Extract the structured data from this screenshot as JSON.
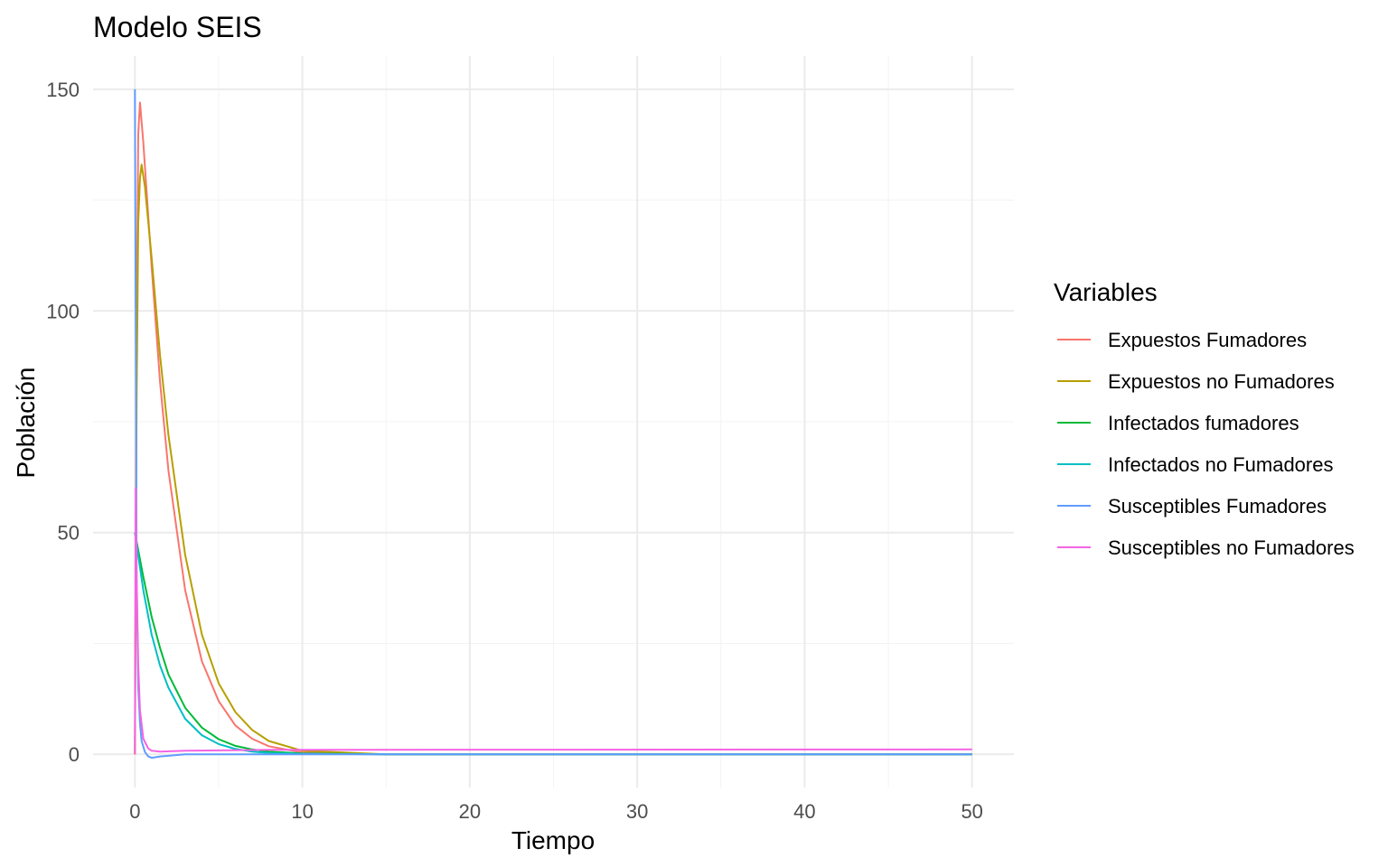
{
  "chart_data": {
    "type": "line",
    "title": "Modelo SEIS",
    "xlabel": "Tiempo",
    "ylabel": "Población",
    "xlim": [
      -2.5,
      52.5
    ],
    "ylim": [
      -7.5,
      157.5
    ],
    "xticks": [
      0,
      10,
      20,
      30,
      40,
      50
    ],
    "xtick_labels": [
      "0",
      "10",
      "20",
      "30",
      "40",
      "50"
    ],
    "yticks": [
      0,
      50,
      100,
      150
    ],
    "ytick_labels": [
      "0",
      "50",
      "100",
      "150"
    ],
    "grid": true,
    "legend": {
      "title": "Variables",
      "position": "right"
    },
    "series": [
      {
        "name": "Expuestos Fumadores",
        "color": "#F8766D",
        "x": [
          0,
          0.1,
          0.2,
          0.3,
          0.5,
          1,
          1.5,
          2,
          3,
          4,
          5,
          6,
          7,
          8,
          10,
          15,
          50
        ],
        "y": [
          0,
          95,
          140,
          147,
          138,
          110,
          84,
          64,
          37,
          21,
          12,
          6.5,
          3.5,
          1.8,
          0.4,
          0,
          0
        ]
      },
      {
        "name": "Expuestos no Fumadores",
        "color": "#B79F00",
        "x": [
          0,
          0.1,
          0.2,
          0.3,
          0.4,
          0.6,
          1,
          1.5,
          2,
          3,
          4,
          5,
          6,
          7,
          8,
          10,
          15,
          50
        ],
        "y": [
          0,
          80,
          120,
          130,
          133,
          128,
          112,
          90,
          72,
          45,
          27,
          16,
          9.5,
          5.5,
          3,
          0.8,
          0,
          0
        ]
      },
      {
        "name": "Infectados fumadores",
        "color": "#00BA38",
        "x": [
          0,
          0.5,
          1,
          1.5,
          2,
          3,
          4,
          5,
          6,
          7,
          8,
          10,
          15,
          50
        ],
        "y": [
          50,
          40,
          31,
          24,
          18,
          10.5,
          6,
          3.4,
          1.9,
          1.1,
          0.6,
          0.2,
          0,
          0
        ]
      },
      {
        "name": "Infectados no Fumadores",
        "color": "#00BFC4",
        "x": [
          0,
          0.5,
          1,
          1.5,
          2,
          3,
          4,
          5,
          6,
          7,
          8,
          10,
          15,
          50
        ],
        "y": [
          50,
          37,
          27,
          20,
          15,
          8,
          4.3,
          2.3,
          1.2,
          0.6,
          0.3,
          0.1,
          0,
          0
        ]
      },
      {
        "name": "Susceptibles Fumadores",
        "color": "#619CFF",
        "x": [
          0,
          0.05,
          0.1,
          0.2,
          0.3,
          0.4,
          0.6,
          0.8,
          1,
          1.5,
          3,
          50
        ],
        "y": [
          150,
          100,
          40,
          15,
          7,
          3,
          0.5,
          -0.5,
          -0.8,
          -0.5,
          0,
          0
        ]
      },
      {
        "name": "Susceptibles no Fumadores",
        "color": "#F564E3",
        "x": [
          0,
          0.05,
          0.1,
          0.2,
          0.3,
          0.5,
          0.8,
          1,
          1.5,
          3,
          8,
          50
        ],
        "y": [
          0,
          60,
          40,
          20,
          10,
          3.5,
          1.3,
          0.8,
          0.6,
          0.8,
          1,
          1.1
        ]
      }
    ]
  }
}
